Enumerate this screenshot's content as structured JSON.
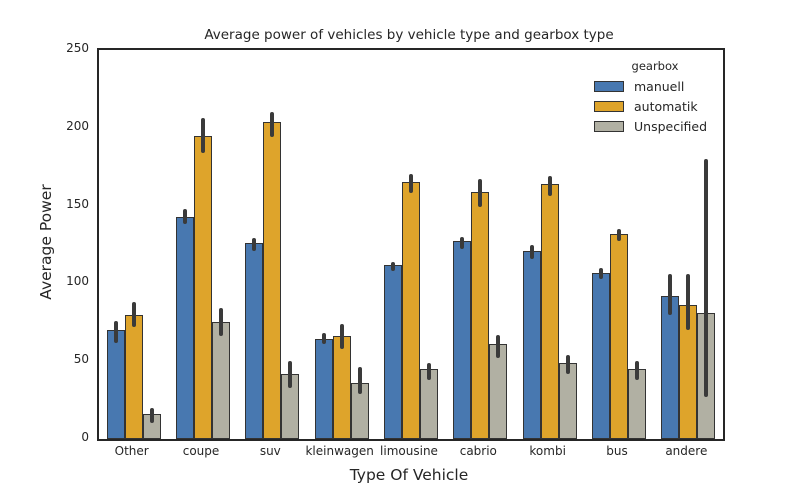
{
  "figure": {
    "title": "Average power of vehicles by vehicle type and gearbox type",
    "xlabel": "Type Of Vehicle",
    "ylabel": "Average Power"
  },
  "legend": {
    "title": "gearbox",
    "position": "upper right"
  },
  "chart_data": {
    "type": "bar",
    "title": "Average power of vehicles by vehicle type and gearbox type",
    "xlabel": "Type Of Vehicle",
    "ylabel": "Average Power",
    "ylim": [
      0,
      250
    ],
    "yticks": [
      0,
      50,
      100,
      150,
      200,
      250
    ],
    "grid": false,
    "legend_title": "gearbox",
    "legend_position": "upper right",
    "error_bars": "confidence interval lines",
    "categories": [
      "Other",
      "coupe",
      "suv",
      "kleinwagen",
      "limousine",
      "cabrio",
      "kombi",
      "bus",
      "andere"
    ],
    "series": [
      {
        "name": "manuell",
        "color": "#4878B0",
        "values": [
          70,
          143,
          126,
          64,
          112,
          127,
          121,
          107,
          92
        ],
        "ci_low": [
          62,
          138,
          121,
          61,
          108,
          122,
          116,
          103,
          80
        ],
        "ci_high": [
          76,
          148,
          129,
          68,
          114,
          130,
          125,
          110,
          106
        ]
      },
      {
        "name": "automatik",
        "color": "#DEA42B",
        "values": [
          80,
          195,
          204,
          66,
          165,
          159,
          164,
          132,
          86
        ],
        "ci_low": [
          72,
          184,
          194,
          58,
          158,
          149,
          156,
          127,
          70
        ],
        "ci_high": [
          88,
          206,
          210,
          74,
          170,
          167,
          169,
          135,
          106
        ]
      },
      {
        "name": "Unspecified",
        "color": "#B1B0A3",
        "values": [
          16,
          75,
          42,
          36,
          45,
          61,
          49,
          45,
          81
        ],
        "ci_low": [
          10,
          66,
          33,
          29,
          38,
          52,
          42,
          38,
          27
        ],
        "ci_high": [
          20,
          84,
          50,
          46,
          49,
          67,
          54,
          50,
          180
        ]
      }
    ],
    "style": {
      "bar_edge_color": "#333333",
      "error_bar_color": "#3A3A3A",
      "spine_color": "#262626",
      "background": "#FFFFFF"
    }
  }
}
